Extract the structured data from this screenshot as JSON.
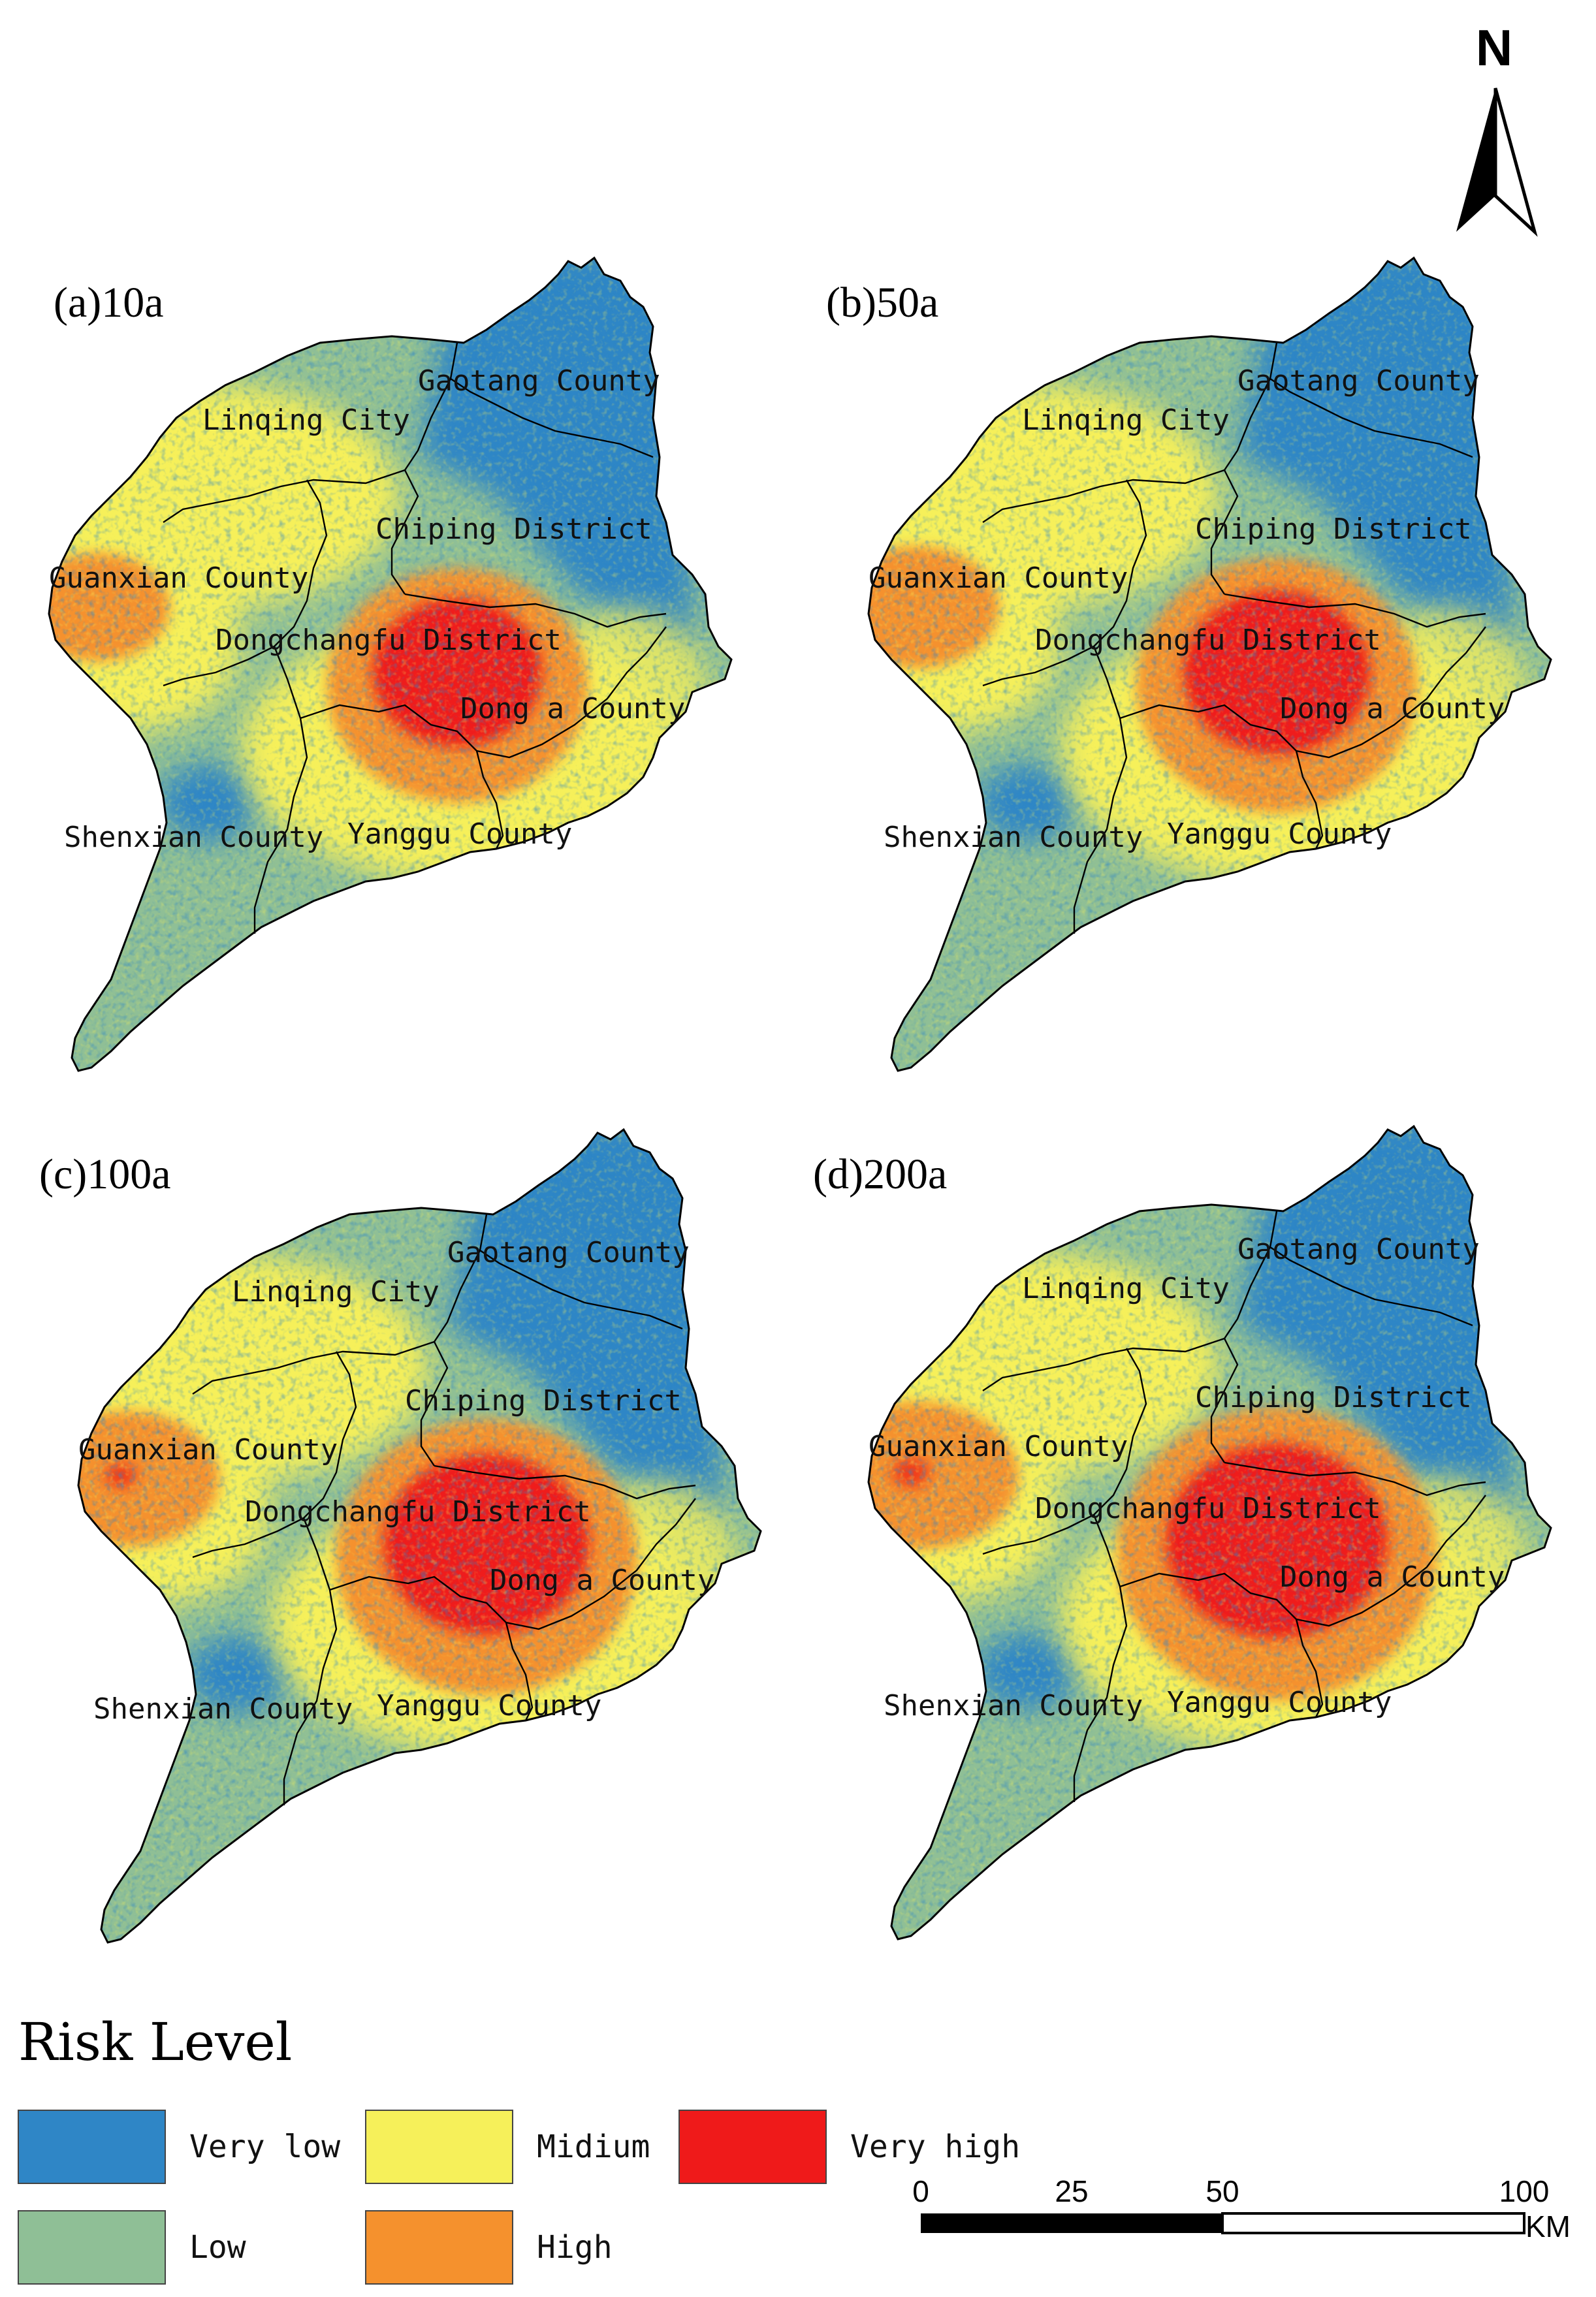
{
  "colors": {
    "very_low": "#2f86c6",
    "low": "#8fbf96",
    "midium": "#f6f05a",
    "high": "#f5912d",
    "very_high": "#ef1a1a",
    "boundary": "#000000"
  },
  "north_arrow": {
    "letter": "N",
    "icon": "north-arrow-icon"
  },
  "panels": [
    {
      "id": "a",
      "title": "(a)10a",
      "core": 0.55
    },
    {
      "id": "b",
      "title": "(b)50a",
      "core": 0.72
    },
    {
      "id": "c",
      "title": "(c)100a",
      "core": 0.9
    },
    {
      "id": "d",
      "title": "(d)200a",
      "core": 1.05
    }
  ],
  "counties": {
    "gaotang": "Gaotang County",
    "linqing": "Linqing City",
    "chiping": "Chiping District",
    "guanxian": "Guanxian County",
    "dongchangfu": "Dongchangfu District",
    "donga": "Dong a County",
    "shenxian": "Shenxian County",
    "yanggu": "Yanggu County"
  },
  "legend": {
    "title": "Risk Level",
    "items": [
      {
        "key": "very_low",
        "label": "Very low"
      },
      {
        "key": "midium",
        "label": "Midium"
      },
      {
        "key": "very_high",
        "label": "Very high"
      },
      {
        "key": "low",
        "label": "Low"
      },
      {
        "key": "high",
        "label": "High"
      }
    ]
  },
  "scale_bar": {
    "ticks": [
      "0",
      "25",
      "50",
      "100"
    ],
    "unit": "KM"
  }
}
